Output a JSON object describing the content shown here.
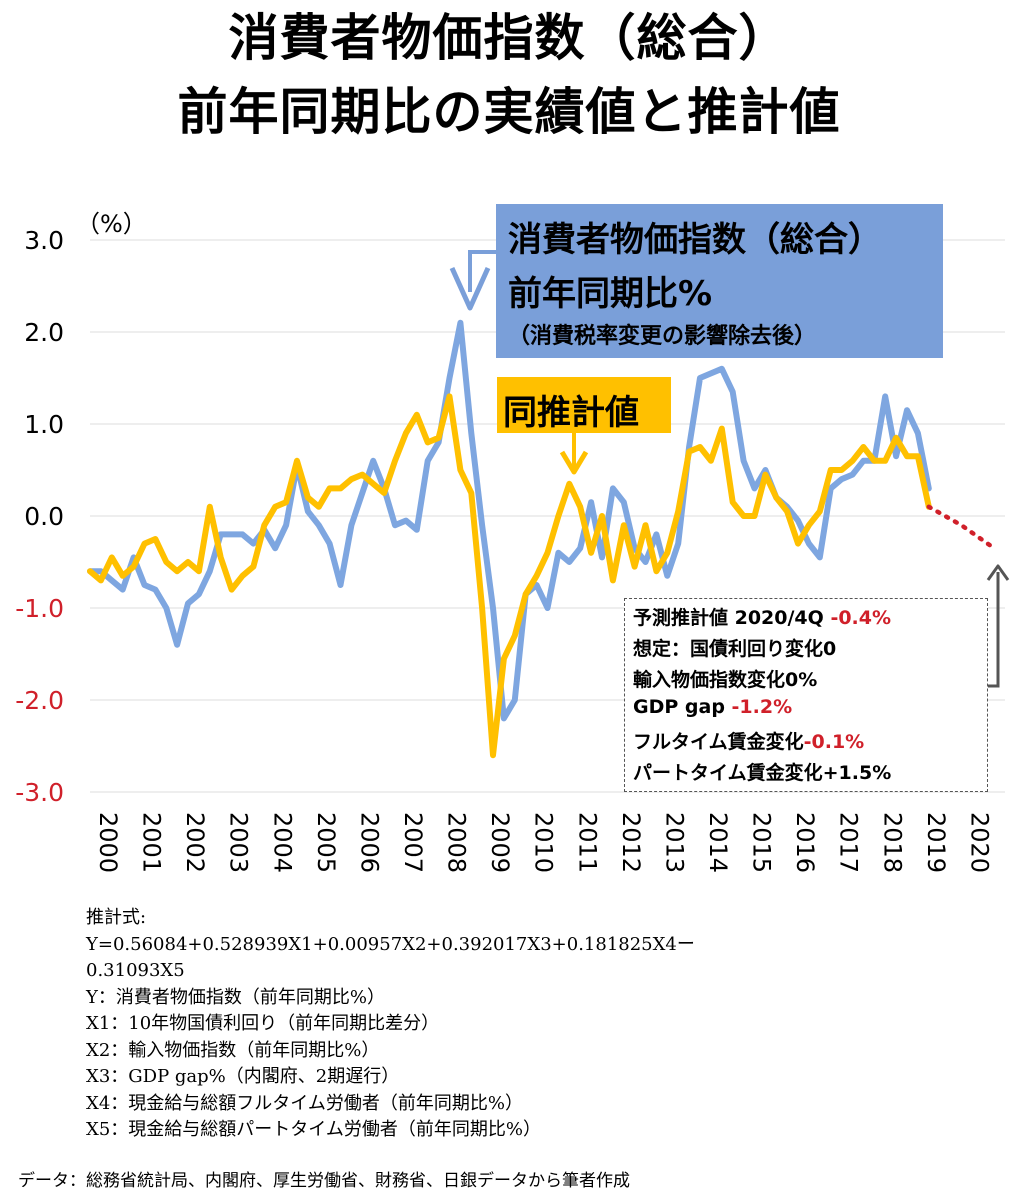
{
  "title": {
    "line1": "消費者物価指数（総合）",
    "line2": "前年同期比の実績値と推計値"
  },
  "legend": {
    "actual_line1": "消費者物価指数（総合）",
    "actual_line2": "前年同期比%",
    "actual_line3": "（消費税率変更の影響除去後）",
    "estimate": "同推計値"
  },
  "forecast_box": {
    "label1": "予測推計値 2020/4Q ",
    "value1": "-0.4%",
    "row2": "想定：国債利回り変化0",
    "row3": "輸入物価指数変化0%",
    "label4": "GDP gap ",
    "value4": "-1.2%",
    "label5": "フルタイム賃金変化",
    "value5": "-0.1%",
    "row6": "パートタイム賃金変化+1.5%"
  },
  "notes": {
    "line1": "推計式:",
    "line2": "Y=0.56084+0.528939X1+0.00957X2+0.392017X3+0.181825X4ー",
    "line3": "0.31093X5",
    "line4": "Y：消費者物価指数（前年同期比%）",
    "line5": "X1：10年物国債利回り（前年同期比差分）",
    "line6": "X2：輸入物価指数（前年同期比%）",
    "line7": "X3：GDP gap%（内閣府、2期遅行）",
    "line8": "X4：現金給与総額フルタイム労働者（前年同期比%）",
    "line9": "X5：現金給与総額パートタイム労働者（前年同期比%）"
  },
  "source": "データ：総務省統計局、内閣府、厚生労働省、財務省、日銀データから筆者作成",
  "colors": {
    "actual": "#7ea6e0",
    "estimate": "#ffc000",
    "forecast": "#d0202a",
    "negative_tick": "#d0202a"
  },
  "chart_data": {
    "type": "line",
    "title": "消費者物価指数（総合） 前年同期比の実績値と推計値",
    "ylabel": "（%）",
    "xlabel": "",
    "ylim": [
      -3.0,
      3.0
    ],
    "yticks": [
      "3.0",
      "2.0",
      "1.0",
      "0.0",
      "-1.0",
      "-2.0",
      "-3.0"
    ],
    "ytick_values": [
      3.0,
      2.0,
      1.0,
      0.0,
      -1.0,
      -2.0,
      -3.0
    ],
    "xlim": [
      2000,
      2021
    ],
    "xticks": [
      "2000",
      "2001",
      "2002",
      "2003",
      "2004",
      "2005",
      "2006",
      "2007",
      "2008",
      "2009",
      "2010",
      "2011",
      "2012",
      "2013",
      "2014",
      "2015",
      "2016",
      "2017",
      "2018",
      "2019",
      "2020"
    ],
    "grid": true,
    "series": [
      {
        "name": "消費者物価指数（総合）前年同期比%",
        "x": [
          2000.0,
          2000.25,
          2000.5,
          2000.75,
          2001.0,
          2001.25,
          2001.5,
          2001.75,
          2002.0,
          2002.25,
          2002.5,
          2002.75,
          2003.0,
          2003.25,
          2003.5,
          2003.75,
          2004.0,
          2004.25,
          2004.5,
          2004.75,
          2005.0,
          2005.25,
          2005.5,
          2005.75,
          2006.0,
          2006.25,
          2006.5,
          2006.75,
          2007.0,
          2007.25,
          2007.5,
          2007.75,
          2008.0,
          2008.25,
          2008.5,
          2008.75,
          2009.0,
          2009.25,
          2009.5,
          2009.75,
          2010.0,
          2010.25,
          2010.5,
          2010.75,
          2011.0,
          2011.25,
          2011.5,
          2011.75,
          2012.0,
          2012.25,
          2012.5,
          2012.75,
          2013.0,
          2013.25,
          2013.5,
          2013.75,
          2014.0,
          2014.25,
          2014.5,
          2014.75,
          2015.0,
          2015.25,
          2015.5,
          2015.75,
          2016.0,
          2016.25,
          2016.5,
          2016.75,
          2017.0,
          2017.25,
          2017.5,
          2017.75,
          2018.0,
          2018.25,
          2018.5,
          2018.75,
          2019.0,
          2019.25
        ],
        "values": [
          -0.6,
          -0.6,
          -0.7,
          -0.8,
          -0.45,
          -0.75,
          -0.8,
          -1.0,
          -1.4,
          -0.95,
          -0.85,
          -0.6,
          -0.2,
          -0.2,
          -0.2,
          -0.3,
          -0.15,
          -0.35,
          -0.1,
          0.55,
          0.05,
          -0.1,
          -0.3,
          -0.75,
          -0.1,
          0.25,
          0.6,
          0.3,
          -0.1,
          -0.05,
          -0.15,
          0.6,
          0.8,
          1.5,
          2.1,
          0.9,
          -0.1,
          -1.0,
          -2.2,
          -2.0,
          -0.85,
          -0.75,
          -1.0,
          -0.4,
          -0.5,
          -0.35,
          0.15,
          -0.45,
          0.3,
          0.15,
          -0.35,
          -0.5,
          -0.2,
          -0.65,
          -0.3,
          0.75,
          1.5,
          1.55,
          1.6,
          1.35,
          0.6,
          0.3,
          0.5,
          0.2,
          0.1,
          -0.05,
          -0.3,
          -0.45,
          0.3,
          0.4,
          0.45,
          0.6,
          0.6,
          1.3,
          0.65,
          1.15,
          0.9,
          0.3
        ]
      },
      {
        "name": "同推計値",
        "x": [
          2000.0,
          2000.25,
          2000.5,
          2000.75,
          2001.0,
          2001.25,
          2001.5,
          2001.75,
          2002.0,
          2002.25,
          2002.5,
          2002.75,
          2003.0,
          2003.25,
          2003.5,
          2003.75,
          2004.0,
          2004.25,
          2004.5,
          2004.75,
          2005.0,
          2005.25,
          2005.5,
          2005.75,
          2006.0,
          2006.25,
          2006.5,
          2006.75,
          2007.0,
          2007.25,
          2007.5,
          2007.75,
          2008.0,
          2008.25,
          2008.5,
          2008.75,
          2009.0,
          2009.25,
          2009.5,
          2009.75,
          2010.0,
          2010.25,
          2010.5,
          2010.75,
          2011.0,
          2011.25,
          2011.5,
          2011.75,
          2012.0,
          2012.25,
          2012.5,
          2012.75,
          2013.0,
          2013.25,
          2013.5,
          2013.75,
          2014.0,
          2014.25,
          2014.5,
          2014.75,
          2015.0,
          2015.25,
          2015.5,
          2015.75,
          2016.0,
          2016.25,
          2016.5,
          2016.75,
          2017.0,
          2017.25,
          2017.5,
          2017.75,
          2018.0,
          2018.25,
          2018.5,
          2018.75,
          2019.0,
          2019.25
        ],
        "values": [
          -0.6,
          -0.7,
          -0.45,
          -0.65,
          -0.55,
          -0.3,
          -0.25,
          -0.5,
          -0.6,
          -0.5,
          -0.6,
          0.1,
          -0.45,
          -0.8,
          -0.65,
          -0.55,
          -0.1,
          0.1,
          0.15,
          0.6,
          0.2,
          0.1,
          0.3,
          0.3,
          0.4,
          0.45,
          0.35,
          0.25,
          0.6,
          0.9,
          1.1,
          0.8,
          0.85,
          1.3,
          0.5,
          0.25,
          -1.0,
          -2.6,
          -1.55,
          -1.3,
          -0.85,
          -0.65,
          -0.4,
          0.0,
          0.35,
          0.1,
          -0.4,
          0.0,
          -0.7,
          -0.1,
          -0.55,
          -0.1,
          -0.6,
          -0.4,
          0.05,
          0.7,
          0.75,
          0.6,
          0.95,
          0.15,
          0.0,
          0.0,
          0.45,
          0.2,
          0.05,
          -0.3,
          -0.1,
          0.05,
          0.5,
          0.5,
          0.6,
          0.75,
          0.6,
          0.6,
          0.85,
          0.65,
          0.65,
          0.1
        ]
      },
      {
        "name": "予測推計値",
        "x": [
          2019.25,
          2020.0,
          2020.75
        ],
        "values": [
          0.1,
          -0.1,
          -0.35
        ]
      }
    ],
    "annotations": [
      {
        "text": "予測推計値 2020/4Q -0.4%"
      },
      {
        "text": "想定：国債利回り変化0"
      },
      {
        "text": "輸入物価指数変化0%"
      },
      {
        "text": "GDP gap -1.2%"
      },
      {
        "text": "フルタイム賃金変化-0.1%"
      },
      {
        "text": "パートタイム賃金変化+1.5%"
      }
    ]
  }
}
